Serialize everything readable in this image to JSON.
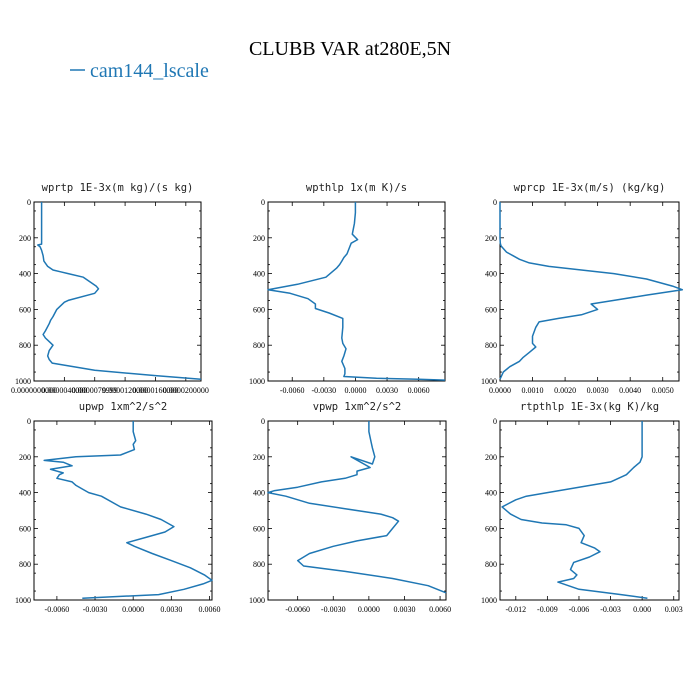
{
  "figure": {
    "title": "CLUBB VAR at280E,5N",
    "legend_label": "cam144_lscale",
    "line_color": "#1f77b4"
  },
  "chart_data": [
    {
      "type": "line",
      "title": "wprtp  1E-3x(m kg)/(s kg)",
      "xlim": [
        0,
        2.2e-05
      ],
      "ylim": [
        1000,
        0
      ],
      "xticks": [
        0,
        4e-06,
        8e-06,
        1.2e-05,
        1.6e-05,
        2e-05
      ],
      "xtick_labels": [
        "0.0000000000",
        "0.0000040000",
        "0.0000079999",
        "0.0000120000",
        "0.0000160000",
        "0.0000200000"
      ],
      "yticks": [
        0,
        200,
        400,
        600,
        800,
        1000
      ],
      "ytick_labels": [
        "0",
        "200",
        "400",
        "600",
        "800",
        "1000"
      ],
      "series": [
        {
          "x": [
            1e-06,
            1e-06,
            5e-07,
            8e-07,
            1e-06,
            1.2e-06,
            1.3e-06,
            1.8e-06,
            2.5e-06,
            3.5e-06,
            4.5e-06,
            6.5e-06,
            8.2e-06,
            8.5e-06,
            8e-06,
            4.5e-06,
            4e-06,
            3e-06,
            2.5e-06,
            2.2e-06,
            2e-06,
            1.5e-06,
            1.2e-06,
            1.5e-06,
            2e-06,
            2.5e-06,
            2e-06,
            1.8e-06,
            2e-06,
            2.4e-06,
            8e-06,
            1.6e-05,
            2.2e-05
          ],
          "y": [
            0,
            235,
            240,
            250,
            270,
            300,
            330,
            360,
            380,
            390,
            400,
            420,
            470,
            485,
            510,
            550,
            560,
            600,
            640,
            660,
            680,
            720,
            740,
            760,
            780,
            800,
            830,
            860,
            880,
            900,
            940,
            970,
            990
          ]
        }
      ]
    },
    {
      "type": "line",
      "title": "wpthlp  1x(m K)/s",
      "xlim": [
        -0.0083,
        0.0085
      ],
      "ylim": [
        1000,
        0
      ],
      "xticks": [
        -0.006,
        -0.003,
        0,
        0.003,
        0.006
      ],
      "xtick_labels": [
        "-0.0060",
        "-0.0030",
        "0.0000",
        "0.0030",
        "0.0060"
      ],
      "yticks": [
        0,
        200,
        400,
        600,
        800,
        1000
      ],
      "ytick_labels": [
        "0",
        "200",
        "400",
        "600",
        "800",
        "1000"
      ],
      "series": [
        {
          "x": [
            0,
            0,
            -0.0001,
            -0.0003,
            0.0002,
            -0.0004,
            -0.0006,
            -0.0008,
            -0.0011,
            -0.0013,
            -0.0015,
            -0.0018,
            -0.0028,
            -0.0055,
            -0.0083,
            -0.0062,
            -0.0045,
            -0.0038,
            -0.0038,
            -0.0025,
            -0.0012,
            -0.0012,
            -0.0013,
            -0.0012,
            -0.0009,
            -0.0011,
            -0.0013,
            -0.001,
            -0.001,
            -0.0011,
            0.002,
            0.006,
            0.0085
          ],
          "y": [
            0,
            60,
            120,
            180,
            210,
            230,
            260,
            290,
            310,
            330,
            350,
            370,
            420,
            460,
            490,
            510,
            540,
            570,
            595,
            620,
            650,
            700,
            760,
            790,
            820,
            860,
            890,
            930,
            960,
            975,
            985,
            990,
            995
          ]
        }
      ]
    },
    {
      "type": "line",
      "title": "wprcp  1E-3x(m/s) (kg/kg)",
      "xlim": [
        0,
        0.0055
      ],
      "ylim": [
        1000,
        0
      ],
      "xticks": [
        0,
        0.001,
        0.002,
        0.003,
        0.004,
        0.005
      ],
      "xtick_labels": [
        "0.0000",
        "0.0010",
        "0.0020",
        "0.0030",
        "0.0040",
        "0.0050"
      ],
      "yticks": [
        0,
        200,
        400,
        600,
        800,
        1000
      ],
      "ytick_labels": [
        "0",
        "200",
        "400",
        "600",
        "800",
        "1000"
      ],
      "series": [
        {
          "x": [
            0,
            0,
            1e-05,
            3e-05,
            0.0001,
            0.0002,
            0.0004,
            0.0006,
            0.0009,
            0.0015,
            0.0025,
            0.0035,
            0.0045,
            0.0053,
            0.0056,
            0.0045,
            0.0035,
            0.0028,
            0.003,
            0.0025,
            0.0018,
            0.0012,
            0.0011,
            0.001,
            0.001,
            0.0011,
            0.0009,
            0.0007,
            0.0006,
            0.0003,
            0.0001,
            0
          ],
          "y": [
            0,
            200,
            230,
            245,
            260,
            280,
            300,
            320,
            340,
            360,
            380,
            400,
            430,
            470,
            490,
            520,
            550,
            570,
            600,
            630,
            650,
            670,
            700,
            750,
            790,
            810,
            840,
            870,
            890,
            920,
            950,
            990
          ]
        }
      ]
    },
    {
      "type": "line",
      "title": "upwp  1xm^2/s^2",
      "xlim": [
        -0.0078,
        0.0062
      ],
      "ylim": [
        1000,
        0
      ],
      "xticks": [
        -0.006,
        -0.003,
        0,
        0.003,
        0.006
      ],
      "xtick_labels": [
        "-0.0060",
        "-0.0030",
        "0.0000",
        "0.0030",
        "0.0060"
      ],
      "yticks": [
        0,
        200,
        400,
        600,
        800,
        1000
      ],
      "ytick_labels": [
        "0",
        "200",
        "400",
        "600",
        "800",
        "1000"
      ],
      "series": [
        {
          "x": [
            0,
            0,
            0.0002,
            0,
            0.0001,
            -0.001,
            -0.0045,
            -0.007,
            -0.0055,
            -0.0048,
            -0.0065,
            -0.0055,
            -0.0058,
            -0.006,
            -0.0048,
            -0.0045,
            -0.004,
            -0.0035,
            -0.0025,
            -0.001,
            0.001,
            0.0022,
            0.0032,
            0.0025,
            0.001,
            -0.0005,
            0.0001,
            0.0015,
            0.003,
            0.0045,
            0.0056,
            0.0062,
            0.0055,
            0.004,
            0.002,
            -0.004
          ],
          "y": [
            0,
            60,
            110,
            130,
            160,
            190,
            200,
            220,
            230,
            250,
            270,
            290,
            300,
            320,
            340,
            360,
            380,
            400,
            420,
            480,
            520,
            550,
            590,
            620,
            650,
            680,
            700,
            740,
            780,
            820,
            860,
            890,
            910,
            940,
            970,
            990
          ]
        }
      ]
    },
    {
      "type": "line",
      "title": "vpwp  1xm^2/s^2",
      "xlim": [
        -0.0085,
        0.0065
      ],
      "ylim": [
        1000,
        0
      ],
      "xticks": [
        -0.006,
        -0.003,
        0,
        0.003,
        0.006
      ],
      "xtick_labels": [
        "-0.0060",
        "-0.0030",
        "0.0000",
        "0.0030",
        "0.0060"
      ],
      "yticks": [
        0,
        200,
        400,
        600,
        800,
        1000
      ],
      "ytick_labels": [
        "0",
        "200",
        "400",
        "600",
        "800",
        "1000"
      ],
      "series": [
        {
          "x": [
            0,
            0,
            0.0002,
            0.0003,
            0.0005,
            0.0003,
            -0.0015,
            0.0001,
            -0.001,
            -0.001,
            -0.002,
            -0.004,
            -0.006,
            -0.008,
            -0.0085,
            -0.007,
            -0.005,
            -0.002,
            0.001,
            0.002,
            0.0025,
            0.002,
            0.0015,
            -0.001,
            -0.003,
            -0.005,
            -0.006,
            -0.0055,
            -0.002,
            0.002,
            0.005,
            0.0065
          ],
          "y": [
            0,
            60,
            120,
            150,
            200,
            240,
            200,
            260,
            280,
            300,
            320,
            340,
            370,
            390,
            400,
            420,
            460,
            490,
            520,
            540,
            560,
            600,
            640,
            670,
            700,
            740,
            780,
            810,
            840,
            880,
            920,
            960
          ]
        }
      ]
    },
    {
      "type": "line",
      "title": "rtpthlp  1E-3x(kg K)/kg",
      "xlim": [
        -0.0135,
        0.0035
      ],
      "ylim": [
        1000,
        0
      ],
      "xticks": [
        -0.012,
        -0.009,
        -0.006,
        -0.003,
        0,
        0.003
      ],
      "xtick_labels": [
        "-0.012",
        "-0.009",
        "-0.006",
        "-0.003",
        "0.000",
        "0.003"
      ],
      "yticks": [
        0,
        200,
        400,
        600,
        800,
        1000
      ],
      "ytick_labels": [
        "0",
        "200",
        "400",
        "600",
        "800",
        "1000"
      ],
      "series": [
        {
          "x": [
            0,
            0,
            -0.0002,
            -0.0008,
            -0.0015,
            -0.003,
            -0.006,
            -0.009,
            -0.011,
            -0.012,
            -0.0133,
            -0.0125,
            -0.0115,
            -0.0095,
            -0.0072,
            -0.006,
            -0.0055,
            -0.0058,
            -0.0045,
            -0.004,
            -0.005,
            -0.0065,
            -0.0068,
            -0.0062,
            -0.0065,
            -0.008,
            -0.006,
            -0.002,
            0.0005
          ],
          "y": [
            0,
            200,
            230,
            260,
            300,
            340,
            370,
            400,
            420,
            440,
            480,
            520,
            550,
            570,
            580,
            600,
            640,
            680,
            710,
            730,
            760,
            790,
            830,
            860,
            880,
            900,
            940,
            970,
            990
          ]
        }
      ]
    }
  ]
}
